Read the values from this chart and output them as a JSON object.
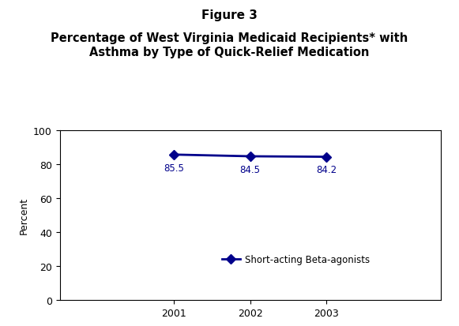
{
  "title_line1": "Figure 3",
  "title_line2": "Percentage of West Virginia Medicaid Recipients* with\nAsthma by Type of Quick-Relief Medication",
  "years": [
    2001,
    2002,
    2003
  ],
  "values": [
    85.5,
    84.5,
    84.2
  ],
  "labels": [
    "85.5",
    "84.5",
    "84.2"
  ],
  "ylabel": "Percent",
  "ylim": [
    0,
    100
  ],
  "yticks": [
    0,
    20,
    40,
    60,
    80,
    100
  ],
  "line_color": "#00008B",
  "marker": "D",
  "marker_size": 6,
  "line_width": 2.0,
  "legend_label": "Short-acting Beta-agonists",
  "label_color": "#00008B",
  "label_fontsize": 8.5,
  "title_fontsize_1": 11,
  "title_fontsize_2": 10.5,
  "background_color": "#ffffff",
  "axes_background": "#ffffff"
}
